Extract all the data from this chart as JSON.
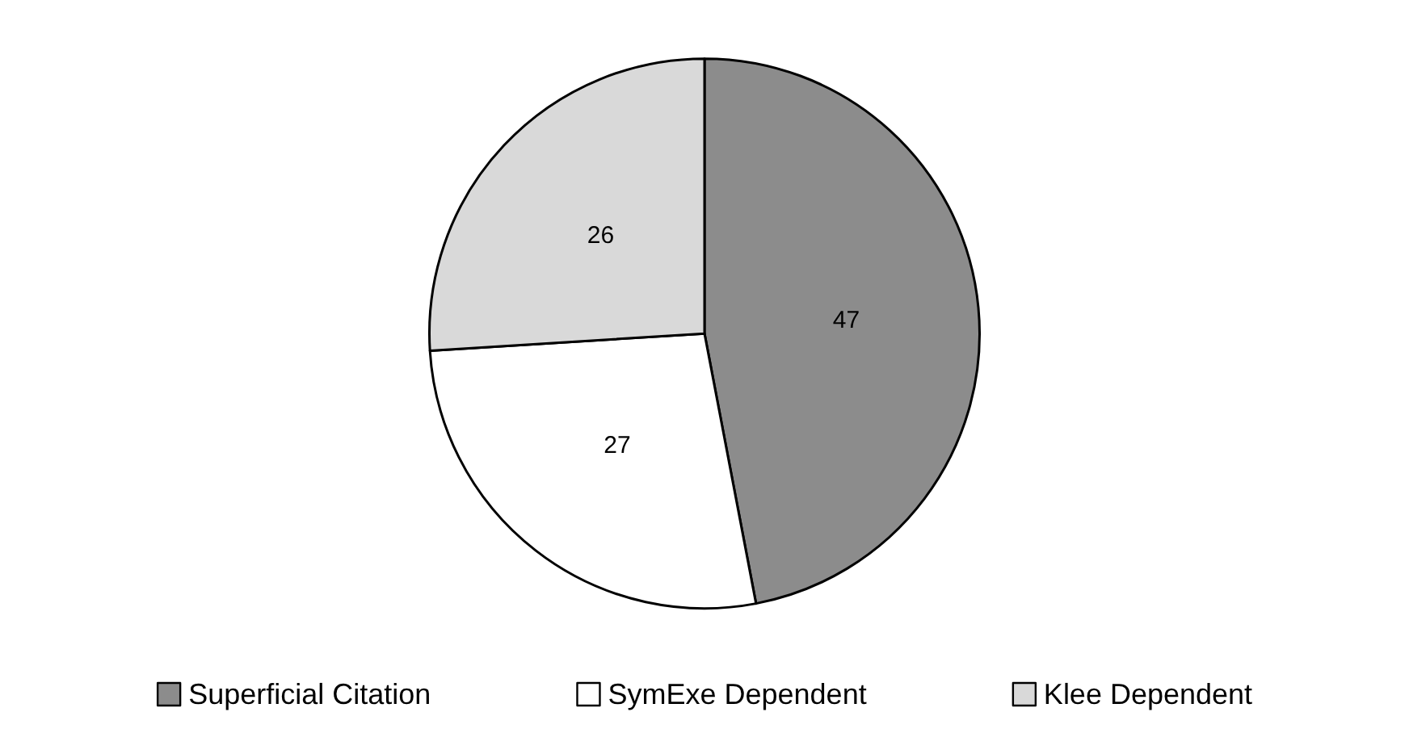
{
  "chart_data": {
    "type": "pie",
    "categories": [
      "Superficial Citation",
      "SymExe Dependent",
      "Klee Dependent"
    ],
    "values": [
      47,
      27,
      26
    ],
    "colors": [
      "#8c8c8c",
      "#ffffff",
      "#d9d9d9"
    ],
    "data_labels": true,
    "legend": "bottom"
  }
}
